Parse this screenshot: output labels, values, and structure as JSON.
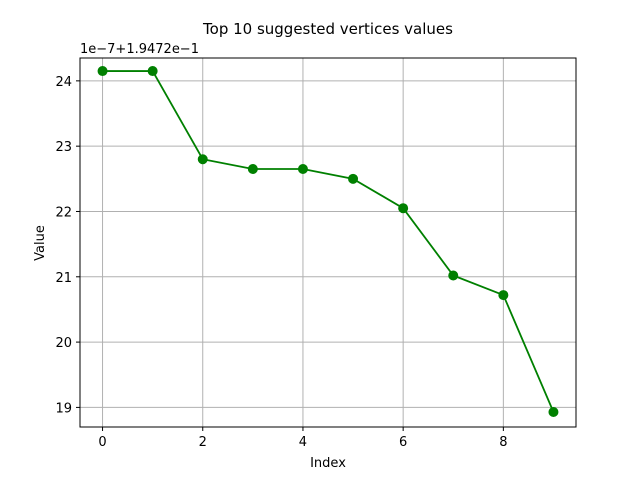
{
  "chart_data": {
    "type": "line",
    "title": "Top 10 suggested vertices values",
    "xlabel": "Index",
    "ylabel": "Value",
    "offset_text": "1e−7+1.9472e−1",
    "grid": true,
    "line_color": "#008000",
    "marker": "circle",
    "xlim": [
      -0.45,
      9.45
    ],
    "ylim": [
      18.7,
      24.35
    ],
    "xticks": [
      0,
      2,
      4,
      6,
      8
    ],
    "xtick_labels": [
      "0",
      "2",
      "4",
      "6",
      "8"
    ],
    "yticks": [
      19,
      20,
      21,
      22,
      23,
      24
    ],
    "ytick_labels": [
      "19",
      "20",
      "21",
      "22",
      "23",
      "24"
    ],
    "x": [
      0,
      1,
      2,
      3,
      4,
      5,
      6,
      7,
      8,
      9
    ],
    "series": [
      {
        "values": [
          24.15,
          24.15,
          22.8,
          22.65,
          22.65,
          22.5,
          22.05,
          21.02,
          20.72,
          18.93
        ]
      }
    ]
  }
}
